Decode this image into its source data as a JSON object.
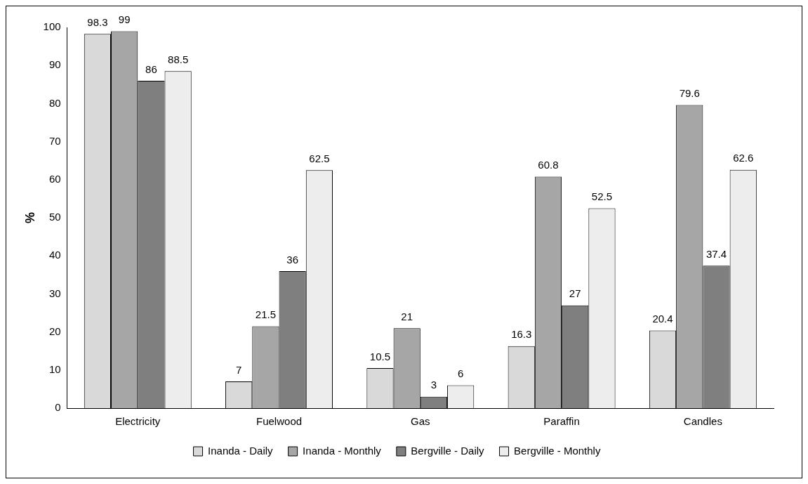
{
  "chart_data": {
    "type": "bar",
    "ylabel": "%",
    "categories": [
      "Electricity",
      "Fuelwood",
      "Gas",
      "Paraffin",
      "Candles"
    ],
    "series": [
      {
        "name": "Inanda - Daily",
        "color": "#d9d9d9",
        "values": [
          98.3,
          7,
          10.5,
          16.3,
          20.4
        ]
      },
      {
        "name": "Inanda - Monthly",
        "color": "#a6a6a6",
        "values": [
          99,
          21.5,
          21,
          60.8,
          79.6
        ]
      },
      {
        "name": "Bergville - Daily",
        "color": "#7f7f7f",
        "values": [
          86,
          36,
          3,
          27,
          37.4
        ]
      },
      {
        "name": "Bergville - Monthly",
        "color": "#ededed",
        "values": [
          88.5,
          62.5,
          6,
          52.5,
          62.6
        ]
      }
    ],
    "ylim": [
      0,
      100
    ],
    "yticks": [
      0,
      10,
      20,
      30,
      40,
      50,
      60,
      70,
      80,
      90,
      100
    ],
    "grid": false,
    "legend": "bottom",
    "data_labels": true
  }
}
